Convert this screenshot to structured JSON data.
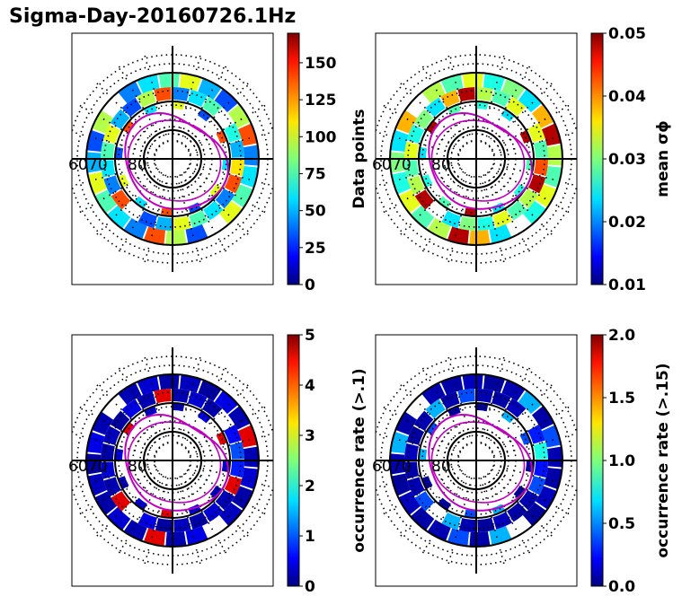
{
  "title": "Sigma-Day-20160726.1Hz",
  "lat_labels": [
    "60",
    "70",
    "80"
  ],
  "chart_data": [
    {
      "type": "heatmap",
      "projection": "polar",
      "colormap": "jet",
      "colorbar_label": "Data points",
      "colorbar_ticks": [
        "0",
        "25",
        "50",
        "75",
        "100",
        "125",
        "150"
      ],
      "clim": [
        0,
        170
      ],
      "cell_level": [
        0.25,
        0.35,
        0.45,
        0.6,
        0.3,
        0.2,
        0.55,
        0.8
      ],
      "boundary_color": "#c000c0",
      "grid": true
    },
    {
      "type": "heatmap",
      "projection": "polar",
      "colormap": "jet",
      "colorbar_label": "mean σϕ",
      "colorbar_ticks": [
        "0.01",
        "0.02",
        "0.03",
        "0.04",
        "0.05"
      ],
      "clim": [
        0.01,
        0.05
      ],
      "cell_level": [
        0.55,
        0.45,
        0.6,
        0.4,
        0.5,
        0.35,
        0.7,
        0.95
      ],
      "boundary_color": "#c000c0",
      "grid": true
    },
    {
      "type": "heatmap",
      "projection": "polar",
      "colormap": "jet",
      "colorbar_label": "occurrence rate (>.1)",
      "colorbar_ticks": [
        "0",
        "1",
        "2",
        "3",
        "4",
        "5"
      ],
      "clim": [
        0,
        5
      ],
      "cell_level": [
        0.05,
        0.08,
        0.04,
        0.06,
        0.03,
        0.1,
        0.05,
        0.9
      ],
      "boundary_color": "#c000c0",
      "grid": true
    },
    {
      "type": "heatmap",
      "projection": "polar",
      "colormap": "jet",
      "colorbar_label": "occurrence rate (>.15)",
      "colorbar_ticks": [
        "0.0",
        "0.5",
        "1.0",
        "1.5",
        "2.0"
      ],
      "clim": [
        0,
        2
      ],
      "cell_level": [
        0.05,
        0.04,
        0.06,
        0.03,
        0.05,
        0.3,
        0.04,
        0.2
      ],
      "boundary_color": "#c000c0",
      "grid": true
    }
  ]
}
